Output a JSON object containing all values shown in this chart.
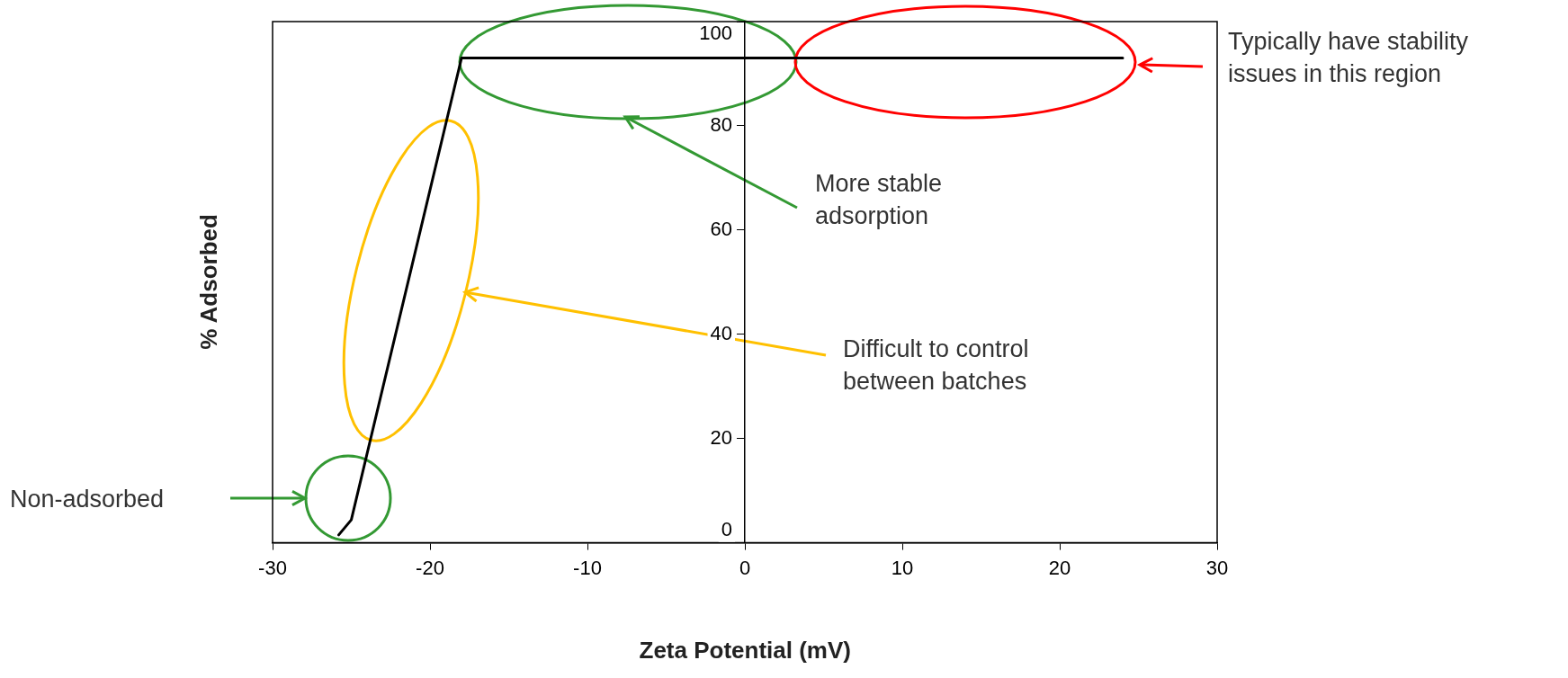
{
  "chart_data": {
    "type": "line",
    "xlabel": "Zeta Potential (mV)",
    "ylabel": "% Adsorbed",
    "x": [
      -25.8,
      -25.0,
      -18.0,
      24.0
    ],
    "series": [
      {
        "color": "#000000",
        "values": [
          1.5,
          4.4,
          93,
          93
        ]
      }
    ],
    "xlim": [
      -30,
      30
    ],
    "xticks": [
      -30,
      -20,
      -10,
      0,
      10,
      20,
      30
    ],
    "ylim": [
      0,
      100
    ],
    "yticks": [
      0,
      20,
      40,
      60,
      80,
      100
    ],
    "grid": false,
    "legend": false,
    "marker": "none",
    "line_style": "solid",
    "annotations": [
      "Typically have stability issues in this region",
      "More stable adsorption",
      "Difficult to control between batches",
      "Non-adsorbed"
    ]
  }
}
